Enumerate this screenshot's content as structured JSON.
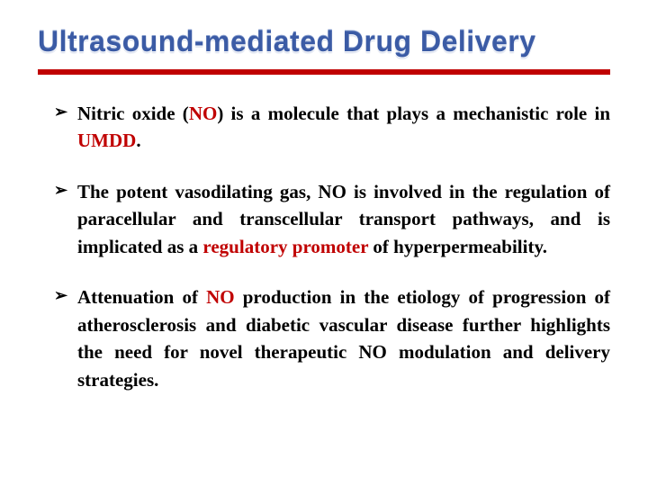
{
  "title": "Ultrasound-mediated Drug Delivery",
  "rule_color": "#c00000",
  "title_color": "#3b5ba5",
  "highlight_color": "#c00000",
  "text_color": "#000000",
  "background_color": "#ffffff",
  "title_fontsize": 32,
  "body_fontsize": 21,
  "bullets": [
    {
      "a": "Nitric oxide (",
      "h1": "NO",
      "b": ") is a molecule that plays a mechanistic role in ",
      "h2": "UMDD",
      "c": "."
    },
    {
      "a": "The potent vasodilating gas, NO is involved in the regulation of paracellular and transcellular transport pathways, and is implicated as a ",
      "h1": "regulatory promoter",
      "b": " of hyperpermeability.",
      "h2": "",
      "c": ""
    },
    {
      "a": "Attenuation of ",
      "h1": "NO",
      "b": " production in the etiology of progression of atherosclerosis and diabetic vascular disease further highlights the need for novel therapeutic NO modulation and delivery strategies.",
      "h2": "",
      "c": ""
    }
  ]
}
